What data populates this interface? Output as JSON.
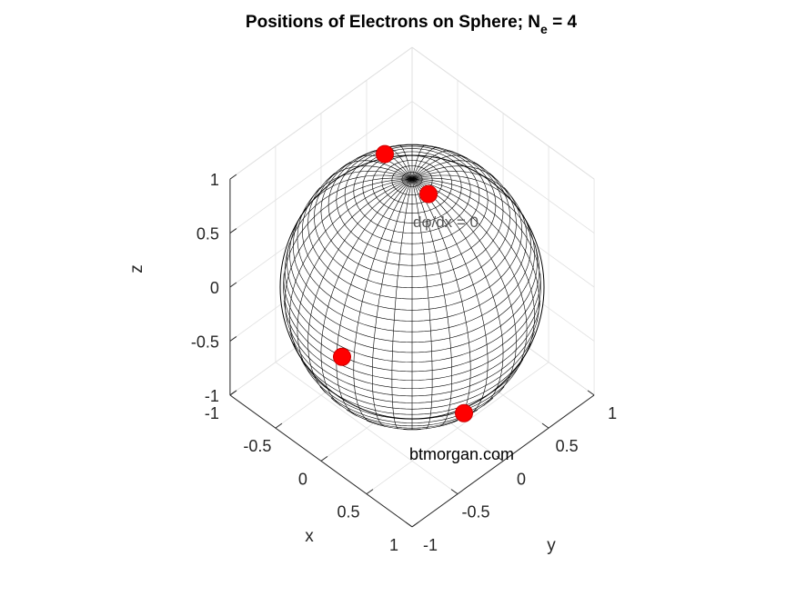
{
  "chart_data": {
    "type": "scatter3d",
    "title_main": "Positions of Electrons on Sphere; N",
    "title_sub": "e",
    "title_tail": " = 4",
    "xlabel": "x",
    "ylabel": "y",
    "zlabel": "z",
    "xlim": [
      -1,
      1
    ],
    "ylim": [
      -1,
      1
    ],
    "zlim": [
      -1,
      1
    ],
    "x_ticks": [
      "-1",
      "-0.5",
      "0",
      "0.5",
      "1"
    ],
    "y_ticks": [
      "-1",
      "-0.5",
      "0",
      "0.5",
      "1"
    ],
    "z_ticks": [
      "-1",
      "-0.5",
      "0",
      "0.5",
      "1"
    ],
    "grid": true,
    "surface": "unit sphere wireframe",
    "marker_color": "#ff0000",
    "mesh_color": "#000000",
    "points": [
      {
        "x": -0.6,
        "y": 0.78,
        "z": 0.02
      },
      {
        "x": 0.21,
        "y": -0.98,
        "z": 0.08
      },
      {
        "x": 0.57,
        "y": 0.0,
        "z": -0.82
      },
      {
        "x": -0.43,
        "y": 0.13,
        "z": 0.89
      }
    ],
    "annotations": [
      {
        "text": "btmorgan.com"
      },
      {
        "text": "dφ/dx = 0"
      }
    ]
  }
}
